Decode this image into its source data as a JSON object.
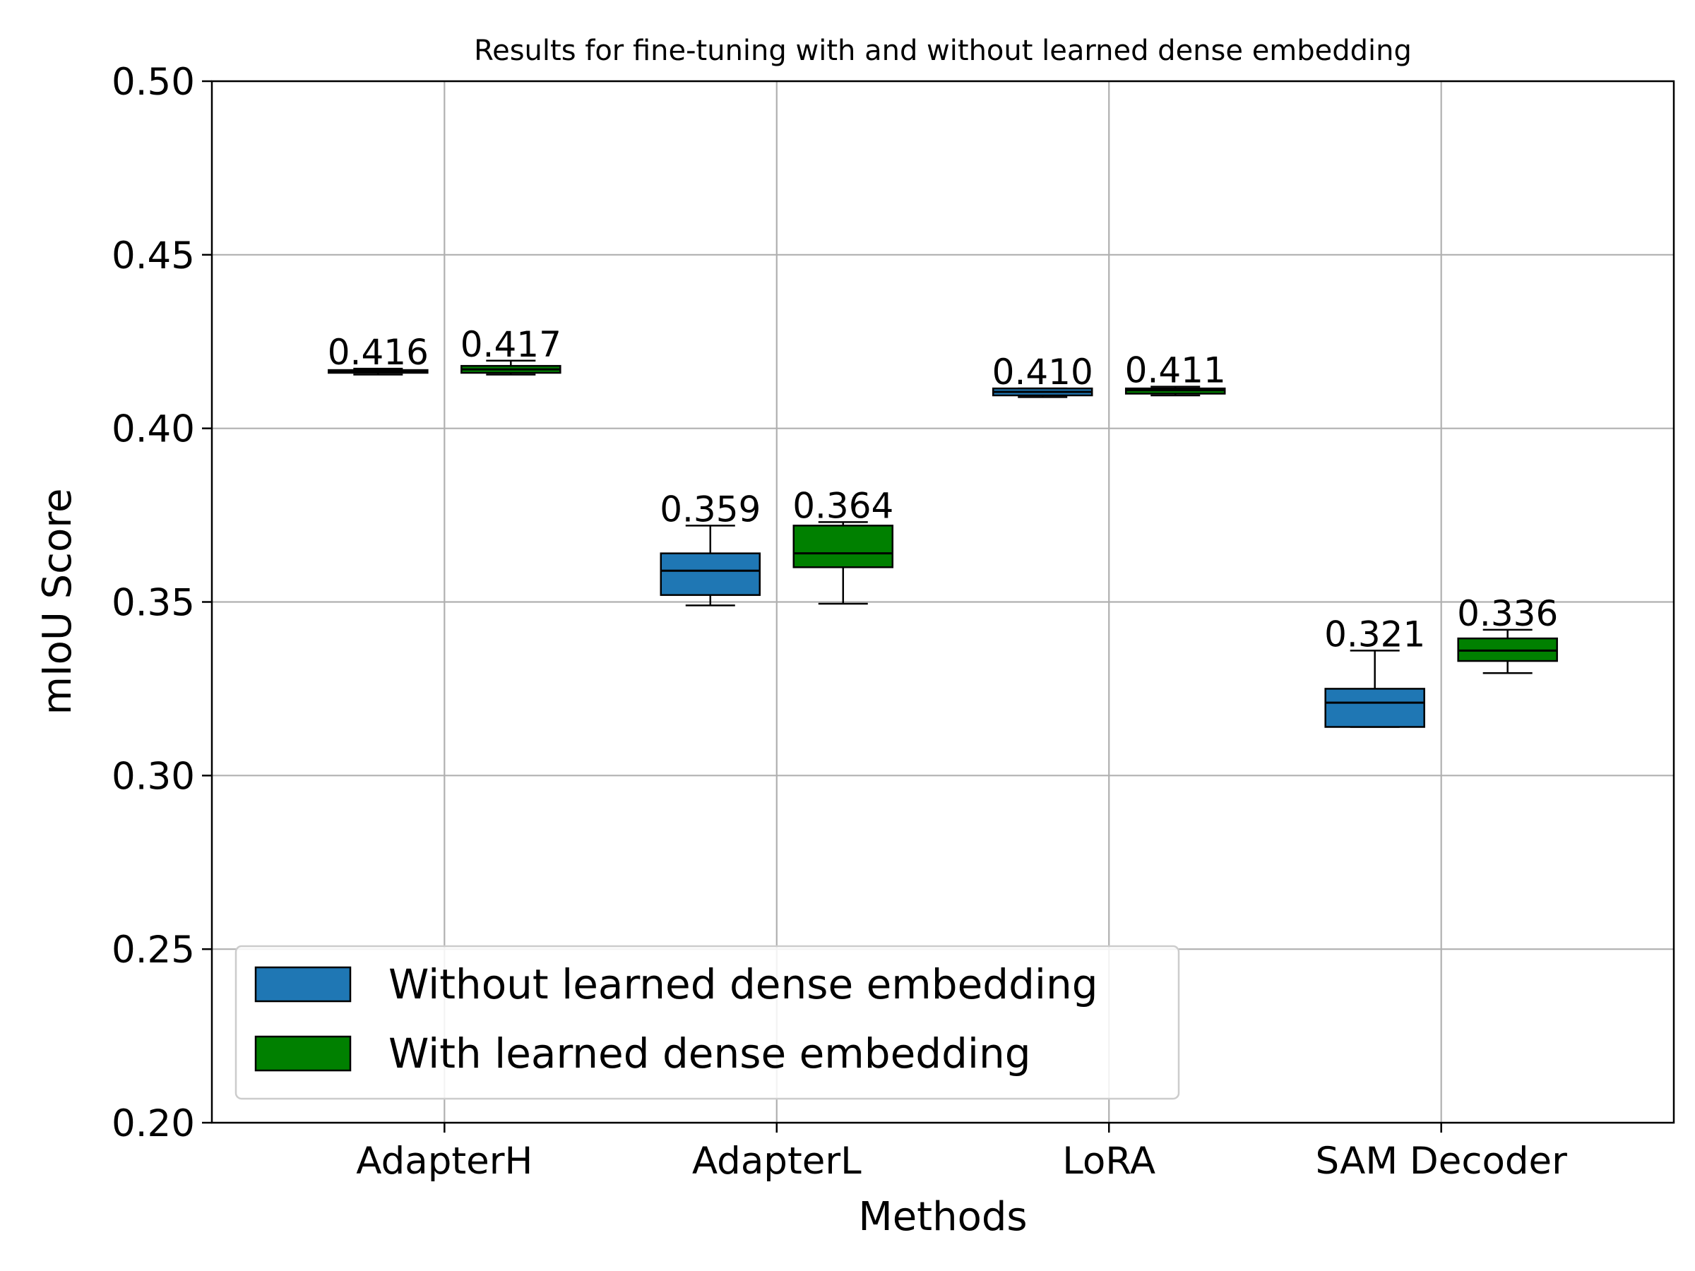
{
  "chart_data": {
    "type": "box",
    "title": "Results for fine-tuning with and without learned dense embedding",
    "xlabel": "Methods",
    "ylabel": "mIoU Score",
    "ylim": [
      0.2,
      0.5
    ],
    "yticks": [
      0.2,
      0.25,
      0.3,
      0.35,
      0.4,
      0.45,
      0.5
    ],
    "ytick_labels": [
      "0.20",
      "0.25",
      "0.30",
      "0.35",
      "0.40",
      "0.45",
      "0.50"
    ],
    "grid": true,
    "legend_position": "lower-left",
    "categories": [
      "AdapterH",
      "AdapterL",
      "LoRA",
      "SAM Decoder"
    ],
    "series": [
      {
        "name": "Without learned dense embedding",
        "color": "#1f77b4",
        "boxes": [
          {
            "whisker_low": 0.4155,
            "q1": 0.416,
            "median": 0.4163,
            "q3": 0.4168,
            "whisker_high": 0.4172,
            "label": "0.416"
          },
          {
            "whisker_low": 0.349,
            "q1": 0.352,
            "median": 0.359,
            "q3": 0.364,
            "whisker_high": 0.372,
            "label": "0.359"
          },
          {
            "whisker_low": 0.409,
            "q1": 0.4095,
            "median": 0.4105,
            "q3": 0.4115,
            "whisker_high": 0.4115,
            "label": "0.410"
          },
          {
            "whisker_low": 0.314,
            "q1": 0.314,
            "median": 0.321,
            "q3": 0.325,
            "whisker_high": 0.336,
            "label": "0.321"
          }
        ]
      },
      {
        "name": "With learned dense embedding",
        "color": "#008000",
        "boxes": [
          {
            "whisker_low": 0.4155,
            "q1": 0.416,
            "median": 0.417,
            "q3": 0.418,
            "whisker_high": 0.4195,
            "label": "0.417"
          },
          {
            "whisker_low": 0.3495,
            "q1": 0.36,
            "median": 0.364,
            "q3": 0.372,
            "whisker_high": 0.373,
            "label": "0.364"
          },
          {
            "whisker_low": 0.4095,
            "q1": 0.41,
            "median": 0.411,
            "q3": 0.4115,
            "whisker_high": 0.412,
            "label": "0.411"
          },
          {
            "whisker_low": 0.3295,
            "q1": 0.333,
            "median": 0.336,
            "q3": 0.3395,
            "whisker_high": 0.342,
            "label": "0.336"
          }
        ]
      }
    ]
  }
}
